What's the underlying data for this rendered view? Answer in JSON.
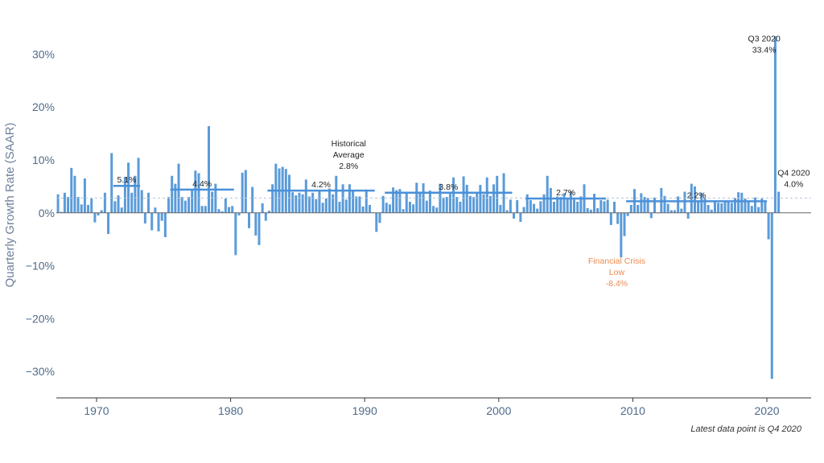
{
  "chart_data": {
    "type": "bar",
    "ylabel": "Quarterly Growth Rate (SAAR)",
    "ylim": [
      -35,
      36
    ],
    "xlim": [
      1967.0,
      2023.3
    ],
    "x_ticks": [
      1970,
      1980,
      1990,
      2000,
      2010,
      2020
    ],
    "y_ticks": [
      {
        "value": 30,
        "label": "30%"
      },
      {
        "value": 20,
        "label": "20%"
      },
      {
        "value": 10,
        "label": "10%"
      },
      {
        "value": 0,
        "label": "0%"
      },
      {
        "value": -10,
        "label": "−10%"
      },
      {
        "value": -20,
        "label": "−20%"
      },
      {
        "value": -30,
        "label": "−30%"
      }
    ],
    "start_year": 1967.0,
    "values": [
      3.5,
      0.2,
      3.8,
      3.0,
      8.5,
      7.0,
      3.0,
      1.6,
      6.5,
      1.5,
      2.7,
      -1.8,
      -0.5,
      0.5,
      3.8,
      -4.0,
      11.3,
      2.2,
      3.3,
      1.0,
      6.8,
      9.5,
      3.8,
      7.0,
      10.4,
      4.3,
      -2.0,
      3.8,
      -3.3,
      1.0,
      -3.5,
      -1.5,
      -4.6,
      3.0,
      7.0,
      5.5,
      9.3,
      3.0,
      2.3,
      3.0,
      4.5,
      8.0,
      7.5,
      1.3,
      1.3,
      16.4,
      4.0,
      5.5,
      0.7,
      0.3,
      2.7,
      1.1,
      1.3,
      -8.0,
      -0.5,
      7.6,
      8.1,
      -2.9,
      4.9,
      -4.3,
      -6.1,
      1.8,
      -1.5,
      0.4,
      5.4,
      9.3,
      8.4,
      8.7,
      8.3,
      7.2,
      3.9,
      3.3,
      3.8,
      3.5,
      6.3,
      3.1,
      3.8,
      2.6,
      4.1,
      1.9,
      2.7,
      4.6,
      3.5,
      7.0,
      2.1,
      5.4,
      2.5,
      5.4,
      4.1,
      3.1,
      3.1,
      1.2,
      4.4,
      1.5,
      0.1,
      -3.6,
      -1.9,
      3.2,
      1.9,
      1.6,
      4.8,
      4.3,
      4.5,
      0.7,
      4.0,
      2.1,
      1.6,
      5.7,
      3.9,
      5.6,
      2.3,
      4.2,
      1.3,
      1.0,
      5.5,
      2.9,
      3.0,
      3.6,
      6.7,
      3.0,
      2.1,
      6.9,
      5.3,
      3.2,
      3.0,
      4.0,
      5.3,
      3.5,
      6.7,
      3.2,
      5.4,
      7.0,
      1.5,
      7.5,
      0.5,
      2.5,
      -1.1,
      2.4,
      -1.7,
      1.1,
      3.5,
      2.4,
      1.7,
      0.8,
      2.2,
      3.5,
      7.0,
      4.7,
      2.1,
      3.1,
      3.0,
      3.7,
      2.9,
      4.1,
      2.5,
      2.1,
      3.1,
      5.4,
      0.9,
      0.6,
      3.6,
      0.9,
      2.4,
      2.2,
      2.5,
      -2.3,
      2.1,
      -2.1,
      -8.4,
      -4.4,
      -0.6,
      1.5,
      4.5,
      1.5,
      3.7,
      3.0,
      2.8,
      -1.0,
      2.9,
      -0.1,
      4.7,
      3.2,
      1.7,
      0.5,
      0.5,
      3.1,
      0.8,
      4.0,
      -1.1,
      5.5,
      5.0,
      2.3,
      3.8,
      2.7,
      1.5,
      0.6,
      2.3,
      1.9,
      1.8,
      2.3,
      2.2,
      1.9,
      2.8,
      3.9,
      3.8,
      2.7,
      2.1,
      1.3,
      2.9,
      1.1,
      2.7,
      2.3,
      -5.0,
      -31.4,
      33.4,
      4.0
    ],
    "historical_average": 2.8,
    "averages": [
      {
        "start": 1971.25,
        "end": 1973.25,
        "value": 5.1,
        "label": "5.1%"
      },
      {
        "start": 1975.5,
        "end": 1980.25,
        "value": 4.4,
        "label": "4.4%"
      },
      {
        "start": 1982.75,
        "end": 1990.75,
        "value": 4.2,
        "label": "4.2%"
      },
      {
        "start": 1991.5,
        "end": 2001.0,
        "value": 3.8,
        "label": "3.8%"
      },
      {
        "start": 2002.0,
        "end": 2008.0,
        "value": 2.7,
        "label": "2.7%"
      },
      {
        "start": 2009.5,
        "end": 2020.0,
        "value": 2.2,
        "label": "2.2%"
      }
    ],
    "annotations": [
      {
        "id": "historical-average",
        "lines": [
          "Historical",
          "Average",
          "2.8%"
        ],
        "x": 1988.8,
        "y": 12.6,
        "style": "dark"
      },
      {
        "id": "financial-crisis",
        "lines": [
          "Financial Crisis",
          "Low",
          "-8.4%"
        ],
        "x": 2008.8,
        "y": -9.6,
        "style": "orange"
      },
      {
        "id": "q3-2020",
        "lines": [
          "Q3 2020",
          "33.4%"
        ],
        "x": 2019.8,
        "y": 32.4,
        "style": "dark"
      },
      {
        "id": "q4-2020",
        "lines": [
          "Q4 2020",
          "4.0%"
        ],
        "x": 2022.0,
        "y": 7.0,
        "style": "dark"
      }
    ]
  },
  "colors": {
    "bar": "#5a9bd9",
    "avg_line": "#4a90d9",
    "zero_line": "#666666",
    "hist_line": "#b8c4d4",
    "axis": "#333333"
  },
  "footnote": "Latest data point is Q4 2020"
}
